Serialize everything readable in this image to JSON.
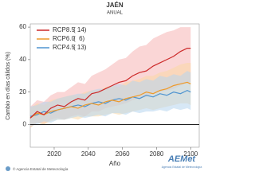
{
  "chart_data": {
    "type": "line",
    "title": "JAÉN",
    "subtitle": "ANUAL",
    "x_label": "Año",
    "y_label": "Cambio en días cálidos (%)",
    "x": [
      2006,
      2010,
      2014,
      2018,
      2022,
      2026,
      2030,
      2034,
      2038,
      2042,
      2046,
      2050,
      2054,
      2058,
      2062,
      2066,
      2070,
      2074,
      2078,
      2082,
      2086,
      2090,
      2094,
      2098,
      2100
    ],
    "series": [
      {
        "name": "RCP8.5",
        "count": "( 14)",
        "color": "#cc2a2a",
        "band_color": "#f5b5b5",
        "values": [
          4,
          8,
          6,
          10,
          12,
          11,
          14,
          16,
          15,
          19,
          20,
          22,
          24,
          26,
          27,
          30,
          32,
          33,
          36,
          38,
          40,
          42,
          45,
          47,
          47
        ],
        "lower": [
          -2,
          1,
          0,
          3,
          4,
          3,
          5,
          6,
          5,
          8,
          8,
          10,
          11,
          12,
          13,
          15,
          16,
          17,
          19,
          20,
          21,
          22,
          24,
          26,
          26
        ],
        "upper": [
          11,
          15,
          14,
          18,
          20,
          20,
          23,
          26,
          25,
          30,
          32,
          34,
          37,
          40,
          41,
          45,
          48,
          49,
          53,
          55,
          57,
          58,
          60,
          60,
          60
        ]
      },
      {
        "name": "RCP6.0",
        "count": "(  6)",
        "color": "#ee9a2a",
        "band_color": "#f9d9a6",
        "values": [
          4,
          7,
          6,
          8,
          9,
          10,
          11,
          10,
          12,
          13,
          12,
          14,
          15,
          14,
          16,
          17,
          18,
          20,
          19,
          21,
          22,
          24,
          25,
          26,
          25
        ],
        "lower": [
          -2,
          1,
          0,
          2,
          3,
          3,
          4,
          3,
          5,
          5,
          5,
          6,
          7,
          6,
          7,
          8,
          9,
          10,
          9,
          10,
          11,
          12,
          13,
          13,
          12
        ],
        "upper": [
          10,
          13,
          12,
          15,
          16,
          17,
          18,
          18,
          20,
          21,
          21,
          23,
          24,
          23,
          26,
          27,
          28,
          30,
          30,
          32,
          33,
          35,
          37,
          38,
          38
        ]
      },
      {
        "name": "RCP4.5",
        "count": "( 13)",
        "color": "#4f94d0",
        "band_color": "#b7d5ee",
        "values": [
          5,
          6,
          8,
          7,
          9,
          10,
          11,
          12,
          11,
          13,
          14,
          13,
          15,
          16,
          15,
          17,
          16,
          18,
          17,
          19,
          18,
          20,
          19,
          21,
          20
        ],
        "lower": [
          -1,
          0,
          2,
          1,
          3,
          3,
          4,
          5,
          4,
          5,
          6,
          5,
          7,
          7,
          6,
          8,
          7,
          8,
          8,
          9,
          8,
          10,
          9,
          10,
          9
        ],
        "upper": [
          11,
          12,
          14,
          14,
          16,
          17,
          18,
          19,
          19,
          21,
          22,
          22,
          24,
          25,
          24,
          27,
          26,
          28,
          27,
          30,
          29,
          31,
          30,
          33,
          32
        ]
      }
    ],
    "xlim": [
      2006,
      2105
    ],
    "xticks": [
      2020,
      2040,
      2060,
      2080,
      2100
    ],
    "ylim": [
      -14,
      62
    ],
    "yticks": [
      0,
      20,
      40,
      60
    ],
    "footer": "© Agencia Estatal de Meteorología",
    "logo": "AEMet",
    "logo_caption": "Agencia Estatal de Meteorología"
  }
}
